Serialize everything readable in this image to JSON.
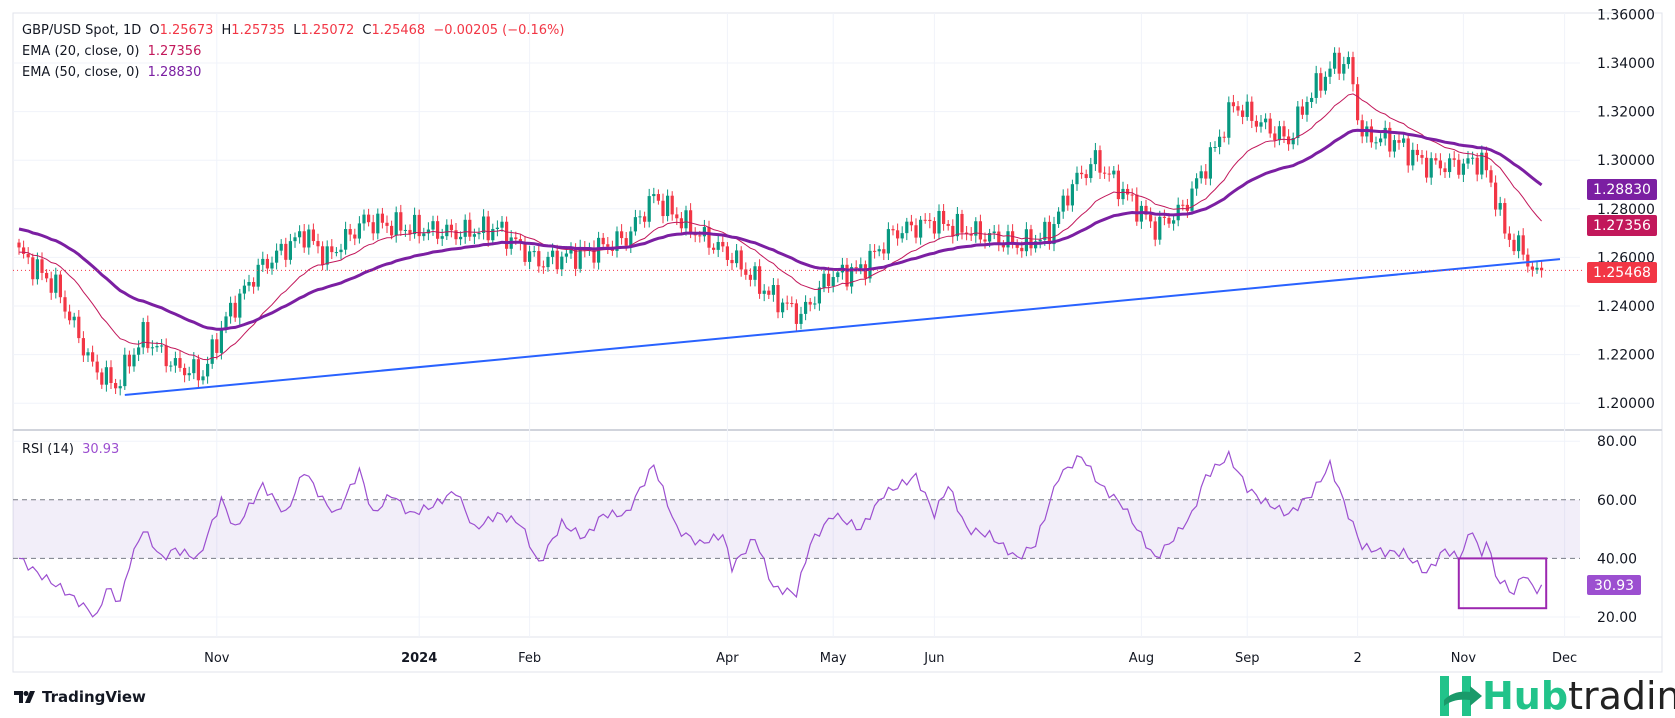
{
  "header": {
    "symbol": "GBP/USD Spot, 1D",
    "open_label": "O",
    "open": "1.25673",
    "high_label": "H",
    "high": "1.25735",
    "low_label": "L",
    "low": "1.25072",
    "close_label": "C",
    "close": "1.25468",
    "change": "−0.00205 (−0.16%)",
    "ema20_label": "EMA (20, close, 0)",
    "ema20_value": "1.27356",
    "ema50_label": "EMA (50, close, 0)",
    "ema50_value": "1.28830",
    "rsi_label": "RSI (14)",
    "rsi_value": "30.93"
  },
  "branding": {
    "tradingview": "TradingView",
    "hub_a": "Hub",
    "hub_b": "trading"
  },
  "colors": {
    "up": "#089981",
    "down": "#f23645",
    "ema20": "#c2185b",
    "ema50": "#7b1fa2",
    "trend": "#2962ff",
    "rsi": "#9c4fd0"
  },
  "chart_data": [
    {
      "type": "candlestick",
      "title": "GBP/USD Spot, 1D",
      "price_ticks": [
        "1.36000",
        "1.34000",
        "1.32000",
        "1.30000",
        "1.28000",
        "1.26000",
        "1.24000",
        "1.22000",
        "1.20000"
      ],
      "ylim": [
        1.196,
        1.361
      ],
      "bars": 332,
      "close_path": [
        [
          0,
          1.262
        ],
        [
          8,
          1.248
        ],
        [
          16,
          1.215
        ],
        [
          21,
          1.207
        ],
        [
          27,
          1.228
        ],
        [
          34,
          1.215
        ],
        [
          40,
          1.212
        ],
        [
          45,
          1.235
        ],
        [
          52,
          1.255
        ],
        [
          62,
          1.27
        ],
        [
          67,
          1.26
        ],
        [
          75,
          1.275
        ],
        [
          85,
          1.272
        ],
        [
          95,
          1.27
        ],
        [
          104,
          1.272
        ],
        [
          113,
          1.258
        ],
        [
          123,
          1.262
        ],
        [
          132,
          1.268
        ],
        [
          138,
          1.285
        ],
        [
          146,
          1.272
        ],
        [
          155,
          1.26
        ],
        [
          163,
          1.245
        ],
        [
          170,
          1.236
        ],
        [
          176,
          1.252
        ],
        [
          183,
          1.255
        ],
        [
          190,
          1.27
        ],
        [
          199,
          1.275
        ],
        [
          208,
          1.27
        ],
        [
          218,
          1.265
        ],
        [
          224,
          1.27
        ],
        [
          229,
          1.29
        ],
        [
          234,
          1.3
        ],
        [
          241,
          1.285
        ],
        [
          247,
          1.272
        ],
        [
          253,
          1.28
        ],
        [
          260,
          1.305
        ],
        [
          264,
          1.323
        ],
        [
          270,
          1.315
        ],
        [
          276,
          1.308
        ],
        [
          280,
          1.325
        ],
        [
          286,
          1.34
        ],
        [
          289,
          1.34
        ],
        [
          292,
          1.31
        ],
        [
          299,
          1.308
        ],
        [
          306,
          1.298
        ],
        [
          313,
          1.298
        ],
        [
          318,
          1.3
        ],
        [
          321,
          1.285
        ],
        [
          323,
          1.27
        ],
        [
          327,
          1.262
        ],
        [
          330,
          1.252
        ],
        [
          331,
          1.25468
        ]
      ],
      "current_price": 1.25468,
      "price_labels": {
        "ema50": "1.28830",
        "ema20": "1.27356",
        "last": "1.25468"
      },
      "trendline": {
        "from": [
          23,
          1.2034
        ],
        "to": [
          335,
          1.2593
        ]
      },
      "x_labels": [
        [
          43,
          "Nov"
        ],
        [
          87,
          "2024"
        ],
        [
          111,
          "Feb"
        ],
        [
          154,
          "Apr"
        ],
        [
          177,
          "May"
        ],
        [
          199,
          "Jun"
        ],
        [
          244,
          "Aug"
        ],
        [
          267,
          "Sep"
        ],
        [
          291,
          "2"
        ],
        [
          314,
          "Nov"
        ],
        [
          336,
          "Dec"
        ]
      ]
    },
    {
      "type": "line",
      "title": "RSI (14)",
      "ylim": [
        12,
        84
      ],
      "ticks": [
        "80.00",
        "60.00",
        "40.00",
        "20.00"
      ],
      "band": [
        40,
        60
      ],
      "last_label": "30.93",
      "highlight_box": {
        "x": [
          313,
          332
        ],
        "y": [
          23,
          40
        ]
      },
      "points": [
        [
          0,
          40
        ],
        [
          4,
          35
        ],
        [
          9,
          30
        ],
        [
          13,
          25
        ],
        [
          17,
          20
        ],
        [
          19,
          30
        ],
        [
          22,
          25
        ],
        [
          24,
          38
        ],
        [
          27,
          50
        ],
        [
          31,
          40
        ],
        [
          34,
          43
        ],
        [
          39,
          40
        ],
        [
          44,
          60
        ],
        [
          47,
          50
        ],
        [
          53,
          65
        ],
        [
          58,
          55
        ],
        [
          62,
          70
        ],
        [
          66,
          60
        ],
        [
          69,
          55
        ],
        [
          74,
          70
        ],
        [
          77,
          55
        ],
        [
          81,
          62
        ],
        [
          85,
          55
        ],
        [
          90,
          58
        ],
        [
          95,
          63
        ],
        [
          99,
          50
        ],
        [
          104,
          55
        ],
        [
          109,
          52
        ],
        [
          113,
          38
        ],
        [
          118,
          52
        ],
        [
          123,
          47
        ],
        [
          127,
          55
        ],
        [
          132,
          55
        ],
        [
          138,
          72
        ],
        [
          143,
          50
        ],
        [
          148,
          45
        ],
        [
          153,
          48
        ],
        [
          155,
          37
        ],
        [
          160,
          47
        ],
        [
          164,
          30
        ],
        [
          169,
          28
        ],
        [
          172,
          45
        ],
        [
          177,
          55
        ],
        [
          183,
          50
        ],
        [
          188,
          62
        ],
        [
          195,
          68
        ],
        [
          199,
          55
        ],
        [
          202,
          65
        ],
        [
          206,
          50
        ],
        [
          211,
          48
        ],
        [
          217,
          40
        ],
        [
          221,
          45
        ],
        [
          226,
          68
        ],
        [
          231,
          75
        ],
        [
          235,
          65
        ],
        [
          240,
          58
        ],
        [
          245,
          45
        ],
        [
          247,
          40
        ],
        [
          250,
          45
        ],
        [
          255,
          55
        ],
        [
          258,
          68
        ],
        [
          263,
          75
        ],
        [
          267,
          64
        ],
        [
          270,
          60
        ],
        [
          276,
          55
        ],
        [
          281,
          62
        ],
        [
          285,
          72
        ],
        [
          289,
          55
        ],
        [
          292,
          44
        ],
        [
          297,
          42
        ],
        [
          301,
          42
        ],
        [
          306,
          35
        ],
        [
          310,
          43
        ],
        [
          313,
          40
        ],
        [
          316,
          50
        ],
        [
          318,
          40
        ],
        [
          319,
          47
        ],
        [
          321,
          34
        ],
        [
          325,
          28
        ],
        [
          327,
          35
        ],
        [
          330,
          28
        ],
        [
          331,
          31
        ],
        [
          332,
          30.93
        ]
      ]
    }
  ]
}
